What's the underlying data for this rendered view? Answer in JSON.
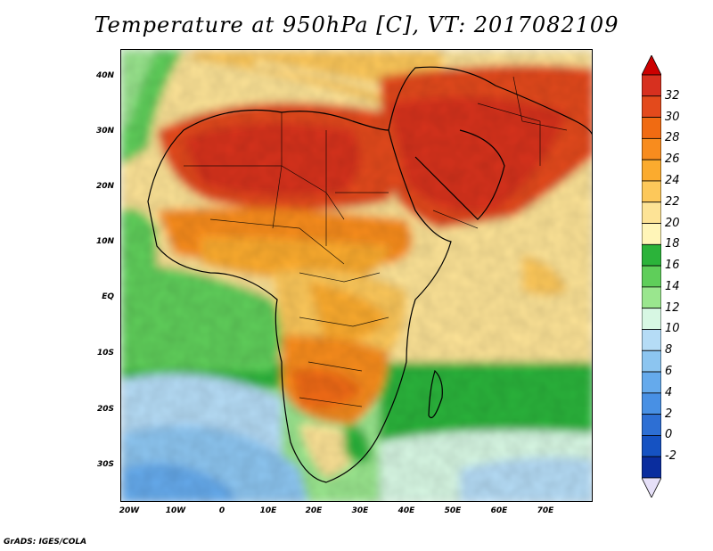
{
  "title": "Temperature at 950hPa [C], VT: 2017082109",
  "credit": "GrADS: IGES/COLA",
  "map": {
    "lat_labels": [
      "40N",
      "30N",
      "20N",
      "10N",
      "EQ",
      "10S",
      "20S",
      "30S"
    ],
    "lat_values": [
      40,
      30,
      20,
      10,
      0,
      -10,
      -20,
      -30
    ],
    "lon_labels": [
      "20W",
      "10W",
      "0",
      "10E",
      "20E",
      "30E",
      "40E",
      "50E",
      "60E",
      "70E"
    ],
    "lon_values": [
      -20,
      -10,
      0,
      10,
      20,
      30,
      40,
      50,
      60,
      70
    ],
    "lat_range": [
      -37,
      45
    ],
    "lon_range": [
      -23,
      80
    ],
    "variable": "Temperature",
    "units": "C",
    "level": "950hPa",
    "valid_time": "2017082109"
  },
  "colorbar": {
    "labels": [
      "32",
      "30",
      "28",
      "26",
      "24",
      "22",
      "20",
      "18",
      "16",
      "14",
      "12",
      "10",
      "8",
      "6",
      "4",
      "2",
      "0",
      "-2"
    ],
    "colors": [
      "#d7301f",
      "#e34a1c",
      "#f06b12",
      "#f88c1e",
      "#fbab2e",
      "#fdc85a",
      "#fde396",
      "#fff5b8",
      "#2bb33a",
      "#5fce5a",
      "#9ae68e",
      "#d7f7e3",
      "#b5dcf6",
      "#8cc5f0",
      "#65aaec",
      "#4890e4",
      "#2d6fd4",
      "#1552c2",
      "#0a2d9e"
    ],
    "end_colors": {
      "top": "#cc0000",
      "bottom": "#e6e0f8"
    }
  }
}
